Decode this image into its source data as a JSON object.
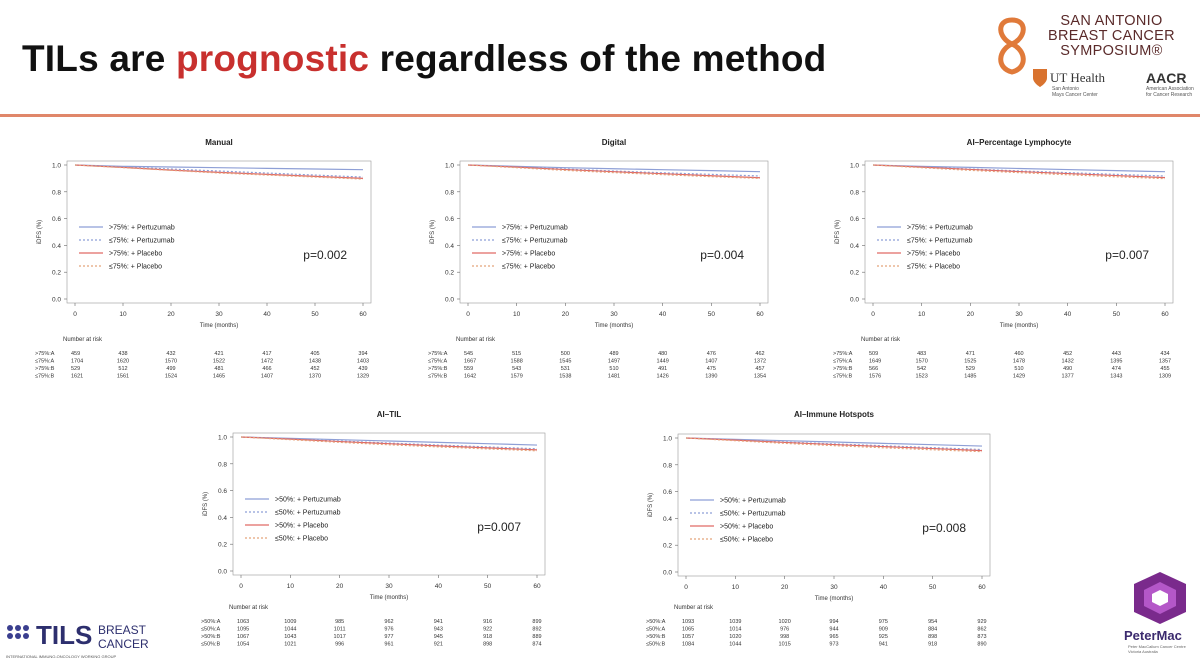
{
  "slide": {
    "title_part1": "TILs are ",
    "title_highlight": "prognostic",
    "title_part2": " regardless of the method",
    "accent_color": "#c8302e",
    "rule_color": "#e0876a"
  },
  "logos": {
    "sabcs": [
      "SAN ANTONIO",
      "BREAST CANCER",
      "SYMPOSIUM®"
    ],
    "ut_health": "UT Health",
    "ut_health_sub": [
      "San Antonio",
      "Mays Cancer Center"
    ],
    "aacr": "AACR",
    "aacr_sub": [
      "American Association",
      "for Cancer Research"
    ],
    "tils_brand": "TILS",
    "tils_sub1": "BREAST",
    "tils_sub2": "CANCER",
    "tils_tagline": "INTERNATIONAL IMMUNO-ONCOLOGY WORKING GROUP",
    "petermac": "PeterMac",
    "petermac_sub": [
      "Peter MacCallum Cancer Centre",
      "Victoria Australia"
    ]
  },
  "series_colors": [
    "#8e9fd6",
    "#8e9fd6",
    "#e06a66",
    "#e4a37a"
  ],
  "series_dash": [
    "",
    "2,2",
    "",
    "2,2"
  ],
  "chart_data": [
    {
      "type": "line",
      "title": "Manual",
      "xlabel": "Time (months)",
      "ylabel": "iDFS (%)",
      "xticks": [
        0,
        10,
        20,
        30,
        40,
        50,
        60
      ],
      "yticks": [
        "0.0",
        "0.2",
        "0.4",
        "0.6",
        "0.8",
        "1.0"
      ],
      "xlim": [
        0,
        60
      ],
      "ylim": [
        0,
        1
      ],
      "pvalue": "p=0.002",
      "legend": [
        ">75%: + Pertuzumab",
        "≤75%: + Pertuzumab",
        ">75%: + Placebo",
        "≤75%: + Placebo"
      ],
      "series": [
        {
          "x": [
            0,
            10,
            20,
            30,
            40,
            50,
            60
          ],
          "y": [
            1.0,
            0.99,
            0.985,
            0.98,
            0.975,
            0.97,
            0.965
          ]
        },
        {
          "x": [
            0,
            10,
            20,
            30,
            40,
            50,
            60
          ],
          "y": [
            1.0,
            0.985,
            0.97,
            0.955,
            0.94,
            0.925,
            0.91
          ]
        },
        {
          "x": [
            0,
            10,
            20,
            30,
            40,
            50,
            60
          ],
          "y": [
            1.0,
            0.982,
            0.962,
            0.945,
            0.93,
            0.915,
            0.9
          ]
        },
        {
          "x": [
            0,
            10,
            20,
            30,
            40,
            50,
            60
          ],
          "y": [
            1.0,
            0.98,
            0.96,
            0.94,
            0.925,
            0.91,
            0.895
          ]
        }
      ],
      "risk_header": "Number at risk",
      "risk_rows": [
        {
          "label": ">75%:A",
          "values": [
            "459",
            "438",
            "432",
            "421",
            "417",
            "405",
            "394"
          ]
        },
        {
          "label": "≤75%:A",
          "values": [
            "1704",
            "1620",
            "1570",
            "1522",
            "1472",
            "1438",
            "1403"
          ]
        },
        {
          "label": ">75%:B",
          "values": [
            "529",
            "512",
            "499",
            "481",
            "466",
            "452",
            "439"
          ]
        },
        {
          "label": "≤75%:B",
          "values": [
            "1621",
            "1561",
            "1524",
            "1465",
            "1407",
            "1370",
            "1329"
          ]
        }
      ]
    },
    {
      "type": "line",
      "title": "Digital",
      "xlabel": "Time (months)",
      "ylabel": "iDFS (%)",
      "xticks": [
        0,
        10,
        20,
        30,
        40,
        50,
        60
      ],
      "yticks": [
        "0.0",
        "0.2",
        "0.4",
        "0.6",
        "0.8",
        "1.0"
      ],
      "xlim": [
        0,
        60
      ],
      "ylim": [
        0,
        1
      ],
      "pvalue": "p=0.004",
      "legend": [
        ">75%: + Pertuzumab",
        "≤75%: + Pertuzumab",
        ">75%: + Placebo",
        "≤75%: + Placebo"
      ],
      "series": [
        {
          "x": [
            0,
            10,
            20,
            30,
            40,
            50,
            60
          ],
          "y": [
            1.0,
            0.99,
            0.98,
            0.972,
            0.965,
            0.958,
            0.95
          ]
        },
        {
          "x": [
            0,
            10,
            20,
            30,
            40,
            50,
            60
          ],
          "y": [
            1.0,
            0.985,
            0.97,
            0.955,
            0.942,
            0.93,
            0.918
          ]
        },
        {
          "x": [
            0,
            10,
            20,
            30,
            40,
            50,
            60
          ],
          "y": [
            1.0,
            0.984,
            0.966,
            0.95,
            0.935,
            0.92,
            0.905
          ]
        },
        {
          "x": [
            0,
            10,
            20,
            30,
            40,
            50,
            60
          ],
          "y": [
            1.0,
            0.98,
            0.96,
            0.943,
            0.928,
            0.913,
            0.9
          ]
        }
      ],
      "risk_header": "Number at risk",
      "risk_rows": [
        {
          "label": ">75%:A",
          "values": [
            "545",
            "515",
            "500",
            "489",
            "480",
            "476",
            "462"
          ]
        },
        {
          "label": "≤75%:A",
          "values": [
            "1667",
            "1588",
            "1545",
            "1497",
            "1449",
            "1407",
            "1372"
          ]
        },
        {
          "label": ">75%:B",
          "values": [
            "559",
            "543",
            "531",
            "510",
            "491",
            "475",
            "457"
          ]
        },
        {
          "label": "≤75%:B",
          "values": [
            "1642",
            "1579",
            "1538",
            "1481",
            "1426",
            "1390",
            "1354"
          ]
        }
      ]
    },
    {
      "type": "line",
      "title": "AI–Percentage Lymphocyte",
      "xlabel": "Time (months)",
      "ylabel": "iDFS (%)",
      "xticks": [
        0,
        10,
        20,
        30,
        40,
        50,
        60
      ],
      "yticks": [
        "0.0",
        "0.2",
        "0.4",
        "0.6",
        "0.8",
        "1.0"
      ],
      "xlim": [
        0,
        60
      ],
      "ylim": [
        0,
        1
      ],
      "pvalue": "p=0.007",
      "legend": [
        ">75%: + Pertuzumab",
        "≤75%: + Pertuzumab",
        ">75%: + Placebo",
        "≤75%: + Placebo"
      ],
      "series": [
        {
          "x": [
            0,
            10,
            20,
            30,
            40,
            50,
            60
          ],
          "y": [
            1.0,
            0.99,
            0.982,
            0.974,
            0.966,
            0.958,
            0.95
          ]
        },
        {
          "x": [
            0,
            10,
            20,
            30,
            40,
            50,
            60
          ],
          "y": [
            1.0,
            0.985,
            0.97,
            0.956,
            0.943,
            0.93,
            0.918
          ]
        },
        {
          "x": [
            0,
            10,
            20,
            30,
            40,
            50,
            60
          ],
          "y": [
            1.0,
            0.984,
            0.967,
            0.951,
            0.936,
            0.921,
            0.906
          ]
        },
        {
          "x": [
            0,
            10,
            20,
            30,
            40,
            50,
            60
          ],
          "y": [
            1.0,
            0.98,
            0.96,
            0.943,
            0.927,
            0.912,
            0.898
          ]
        }
      ],
      "risk_header": "Number at risk",
      "risk_rows": [
        {
          "label": ">75%:A",
          "values": [
            "509",
            "483",
            "471",
            "460",
            "452",
            "443",
            "434"
          ]
        },
        {
          "label": "≤75%:A",
          "values": [
            "1649",
            "1570",
            "1525",
            "1478",
            "1432",
            "1395",
            "1357"
          ]
        },
        {
          "label": ">75%:B",
          "values": [
            "566",
            "542",
            "529",
            "510",
            "490",
            "474",
            "455"
          ]
        },
        {
          "label": "≤75%:B",
          "values": [
            "1576",
            "1523",
            "1485",
            "1429",
            "1377",
            "1343",
            "1309"
          ]
        }
      ]
    },
    {
      "type": "line",
      "title": "AI–TIL",
      "xlabel": "Time (months)",
      "ylabel": "iDFS (%)",
      "xticks": [
        0,
        10,
        20,
        30,
        40,
        50,
        60
      ],
      "yticks": [
        "0.0",
        "0.2",
        "0.4",
        "0.6",
        "0.8",
        "1.0"
      ],
      "xlim": [
        0,
        60
      ],
      "ylim": [
        0,
        1
      ],
      "pvalue": "p=0.007",
      "legend": [
        ">50%: + Pertuzumab",
        "≤50%: + Pertuzumab",
        ">50%: + Placebo",
        "≤50%: + Placebo"
      ],
      "series": [
        {
          "x": [
            0,
            10,
            20,
            30,
            40,
            50,
            60
          ],
          "y": [
            1.0,
            0.99,
            0.98,
            0.97,
            0.96,
            0.95,
            0.94
          ]
        },
        {
          "x": [
            0,
            10,
            20,
            30,
            40,
            50,
            60
          ],
          "y": [
            1.0,
            0.985,
            0.97,
            0.955,
            0.94,
            0.926,
            0.912
          ]
        },
        {
          "x": [
            0,
            10,
            20,
            30,
            40,
            50,
            60
          ],
          "y": [
            1.0,
            0.984,
            0.966,
            0.95,
            0.934,
            0.919,
            0.904
          ]
        },
        {
          "x": [
            0,
            10,
            20,
            30,
            40,
            50,
            60
          ],
          "y": [
            1.0,
            0.98,
            0.96,
            0.942,
            0.926,
            0.911,
            0.897
          ]
        }
      ],
      "risk_header": "Number at risk",
      "risk_rows": [
        {
          "label": ">50%:A",
          "values": [
            "1063",
            "1009",
            "985",
            "962",
            "941",
            "916",
            "899"
          ]
        },
        {
          "label": "≤50%:A",
          "values": [
            "1095",
            "1044",
            "1011",
            "976",
            "943",
            "922",
            "892"
          ]
        },
        {
          "label": ">50%:B",
          "values": [
            "1067",
            "1043",
            "1017",
            "977",
            "945",
            "918",
            "889"
          ]
        },
        {
          "label": "≤50%:B",
          "values": [
            "1054",
            "1021",
            "996",
            "961",
            "921",
            "898",
            "874"
          ]
        }
      ]
    },
    {
      "type": "line",
      "title": "AI–Immune Hotspots",
      "xlabel": "Time (months)",
      "ylabel": "iDFS (%)",
      "xticks": [
        0,
        10,
        20,
        30,
        40,
        50,
        60
      ],
      "yticks": [
        "0.0",
        "0.2",
        "0.4",
        "0.6",
        "0.8",
        "1.0"
      ],
      "xlim": [
        0,
        60
      ],
      "ylim": [
        0,
        1
      ],
      "pvalue": "p=0.008",
      "legend": [
        ">50%: + Pertuzumab",
        "≤50%: + Pertuzumab",
        ">50%: + Placebo",
        "≤50%: + Placebo"
      ],
      "series": [
        {
          "x": [
            0,
            10,
            20,
            30,
            40,
            50,
            60
          ],
          "y": [
            1.0,
            0.99,
            0.98,
            0.97,
            0.96,
            0.95,
            0.94
          ]
        },
        {
          "x": [
            0,
            10,
            20,
            30,
            40,
            50,
            60
          ],
          "y": [
            1.0,
            0.985,
            0.97,
            0.956,
            0.942,
            0.928,
            0.914
          ]
        },
        {
          "x": [
            0,
            10,
            20,
            30,
            40,
            50,
            60
          ],
          "y": [
            1.0,
            0.984,
            0.967,
            0.951,
            0.936,
            0.921,
            0.906
          ]
        },
        {
          "x": [
            0,
            10,
            20,
            30,
            40,
            50,
            60
          ],
          "y": [
            1.0,
            0.98,
            0.96,
            0.943,
            0.927,
            0.912,
            0.898
          ]
        }
      ],
      "risk_header": "Number at risk",
      "risk_rows": [
        {
          "label": ">50%:A",
          "values": [
            "1093",
            "1039",
            "1020",
            "994",
            "975",
            "954",
            "929"
          ]
        },
        {
          "label": "≤50%:A",
          "values": [
            "1065",
            "1014",
            "976",
            "944",
            "909",
            "884",
            "862"
          ]
        },
        {
          "label": ">50%:B",
          "values": [
            "1057",
            "1020",
            "998",
            "965",
            "925",
            "898",
            "873"
          ]
        },
        {
          "label": "≤50%:B",
          "values": [
            "1084",
            "1044",
            "1015",
            "973",
            "941",
            "918",
            "890"
          ]
        }
      ]
    }
  ]
}
